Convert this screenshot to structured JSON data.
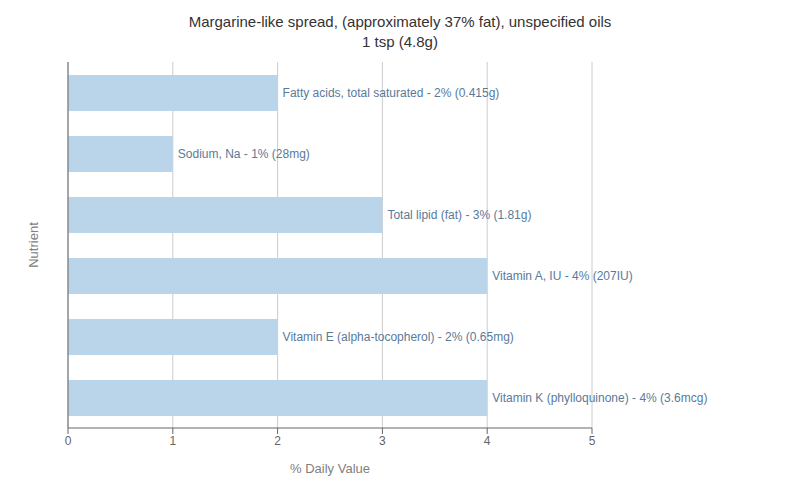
{
  "chart_data": {
    "type": "bar",
    "orientation": "horizontal",
    "title": "Margarine-like spread, (approximately 37% fat), unspecified oils",
    "subtitle": "1 tsp (4.8g)",
    "categories": [
      "Fatty acids, total saturated - 2% (0.415g)",
      "Sodium, Na - 1% (28mg)",
      "Total lipid (fat) - 3% (1.81g)",
      "Vitamin A, IU - 4% (207IU)",
      "Vitamin E (alpha-tocopherol) - 2% (0.65mg)",
      "Vitamin K (phylloquinone) - 4% (3.6mcg)"
    ],
    "values": [
      2,
      1,
      3,
      4,
      2,
      4
    ],
    "color": "#bad4ea",
    "xlabel": "% Daily Value",
    "ylabel": "Nutrient",
    "xlim": [
      0,
      5
    ],
    "xticks": [
      0,
      1,
      2,
      3,
      4,
      5
    ],
    "grid": true,
    "tick_labels": "x"
  }
}
